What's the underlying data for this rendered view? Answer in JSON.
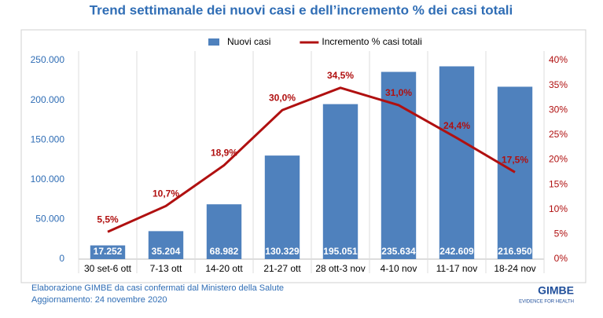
{
  "chart_data": {
    "type": "bar",
    "title": "Trend settimanale dei nuovi casi e dell’incremento % dei casi totali",
    "categories": [
      "30 set-6 ott",
      "7-13 ott",
      "14-20 ott",
      "21-27 ott",
      "28 ott-3 nov",
      "4-10 nov",
      "11-17 nov",
      "18-24 nov"
    ],
    "series": [
      {
        "name": "Nuovi casi",
        "type": "bar",
        "color": "#4f81bd",
        "values": [
          17252,
          35204,
          68982,
          130329,
          195051,
          235634,
          242609,
          216950
        ],
        "value_labels": [
          "17.252",
          "35.204",
          "68.982",
          "130.329",
          "195.051",
          "235.634",
          "242.609",
          "216.950"
        ]
      },
      {
        "name": "Incremento % casi totali",
        "type": "line",
        "axis": "y2",
        "color": "#b01010",
        "values": [
          5.5,
          10.7,
          18.9,
          30.0,
          34.5,
          31.0,
          24.4,
          17.5
        ],
        "value_labels": [
          "5,5%",
          "10,7%",
          "18,9%",
          "30,0%",
          "34,5%",
          "31,0%",
          "24,4%",
          "17,5%"
        ]
      }
    ],
    "ylim": [
      0,
      250000
    ],
    "yticks": [
      0,
      {
        "value": 50000,
        "label": "50.000"
      },
      {
        "value": 100000,
        "label": "100.000"
      },
      {
        "value": 150000,
        "label": "150.000"
      },
      {
        "value": 200000,
        "label": "200.000"
      },
      {
        "value": 250000,
        "label": "250.000"
      }
    ],
    "y2lim": [
      0,
      40
    ],
    "y2ticks": [
      {
        "value": 0,
        "label": "0%"
      },
      {
        "value": 5,
        "label": "5%"
      },
      {
        "value": 10,
        "label": "10%"
      },
      {
        "value": 15,
        "label": "15%"
      },
      {
        "value": 20,
        "label": "20%"
      },
      {
        "value": 25,
        "label": "25%"
      },
      {
        "value": 30,
        "label": "30%"
      },
      {
        "value": 35,
        "label": "35%"
      },
      {
        "value": 40,
        "label": "40%"
      }
    ],
    "legend": "top",
    "annotations": [
      "Elaborazione GIMBE da casi confermati dal Ministero della Salute",
      "Aggiornamento:  24 novembre 2020"
    ]
  },
  "logo": {
    "name": "GIMBE",
    "tagline": "EVIDENCE FOR HEALTH"
  }
}
